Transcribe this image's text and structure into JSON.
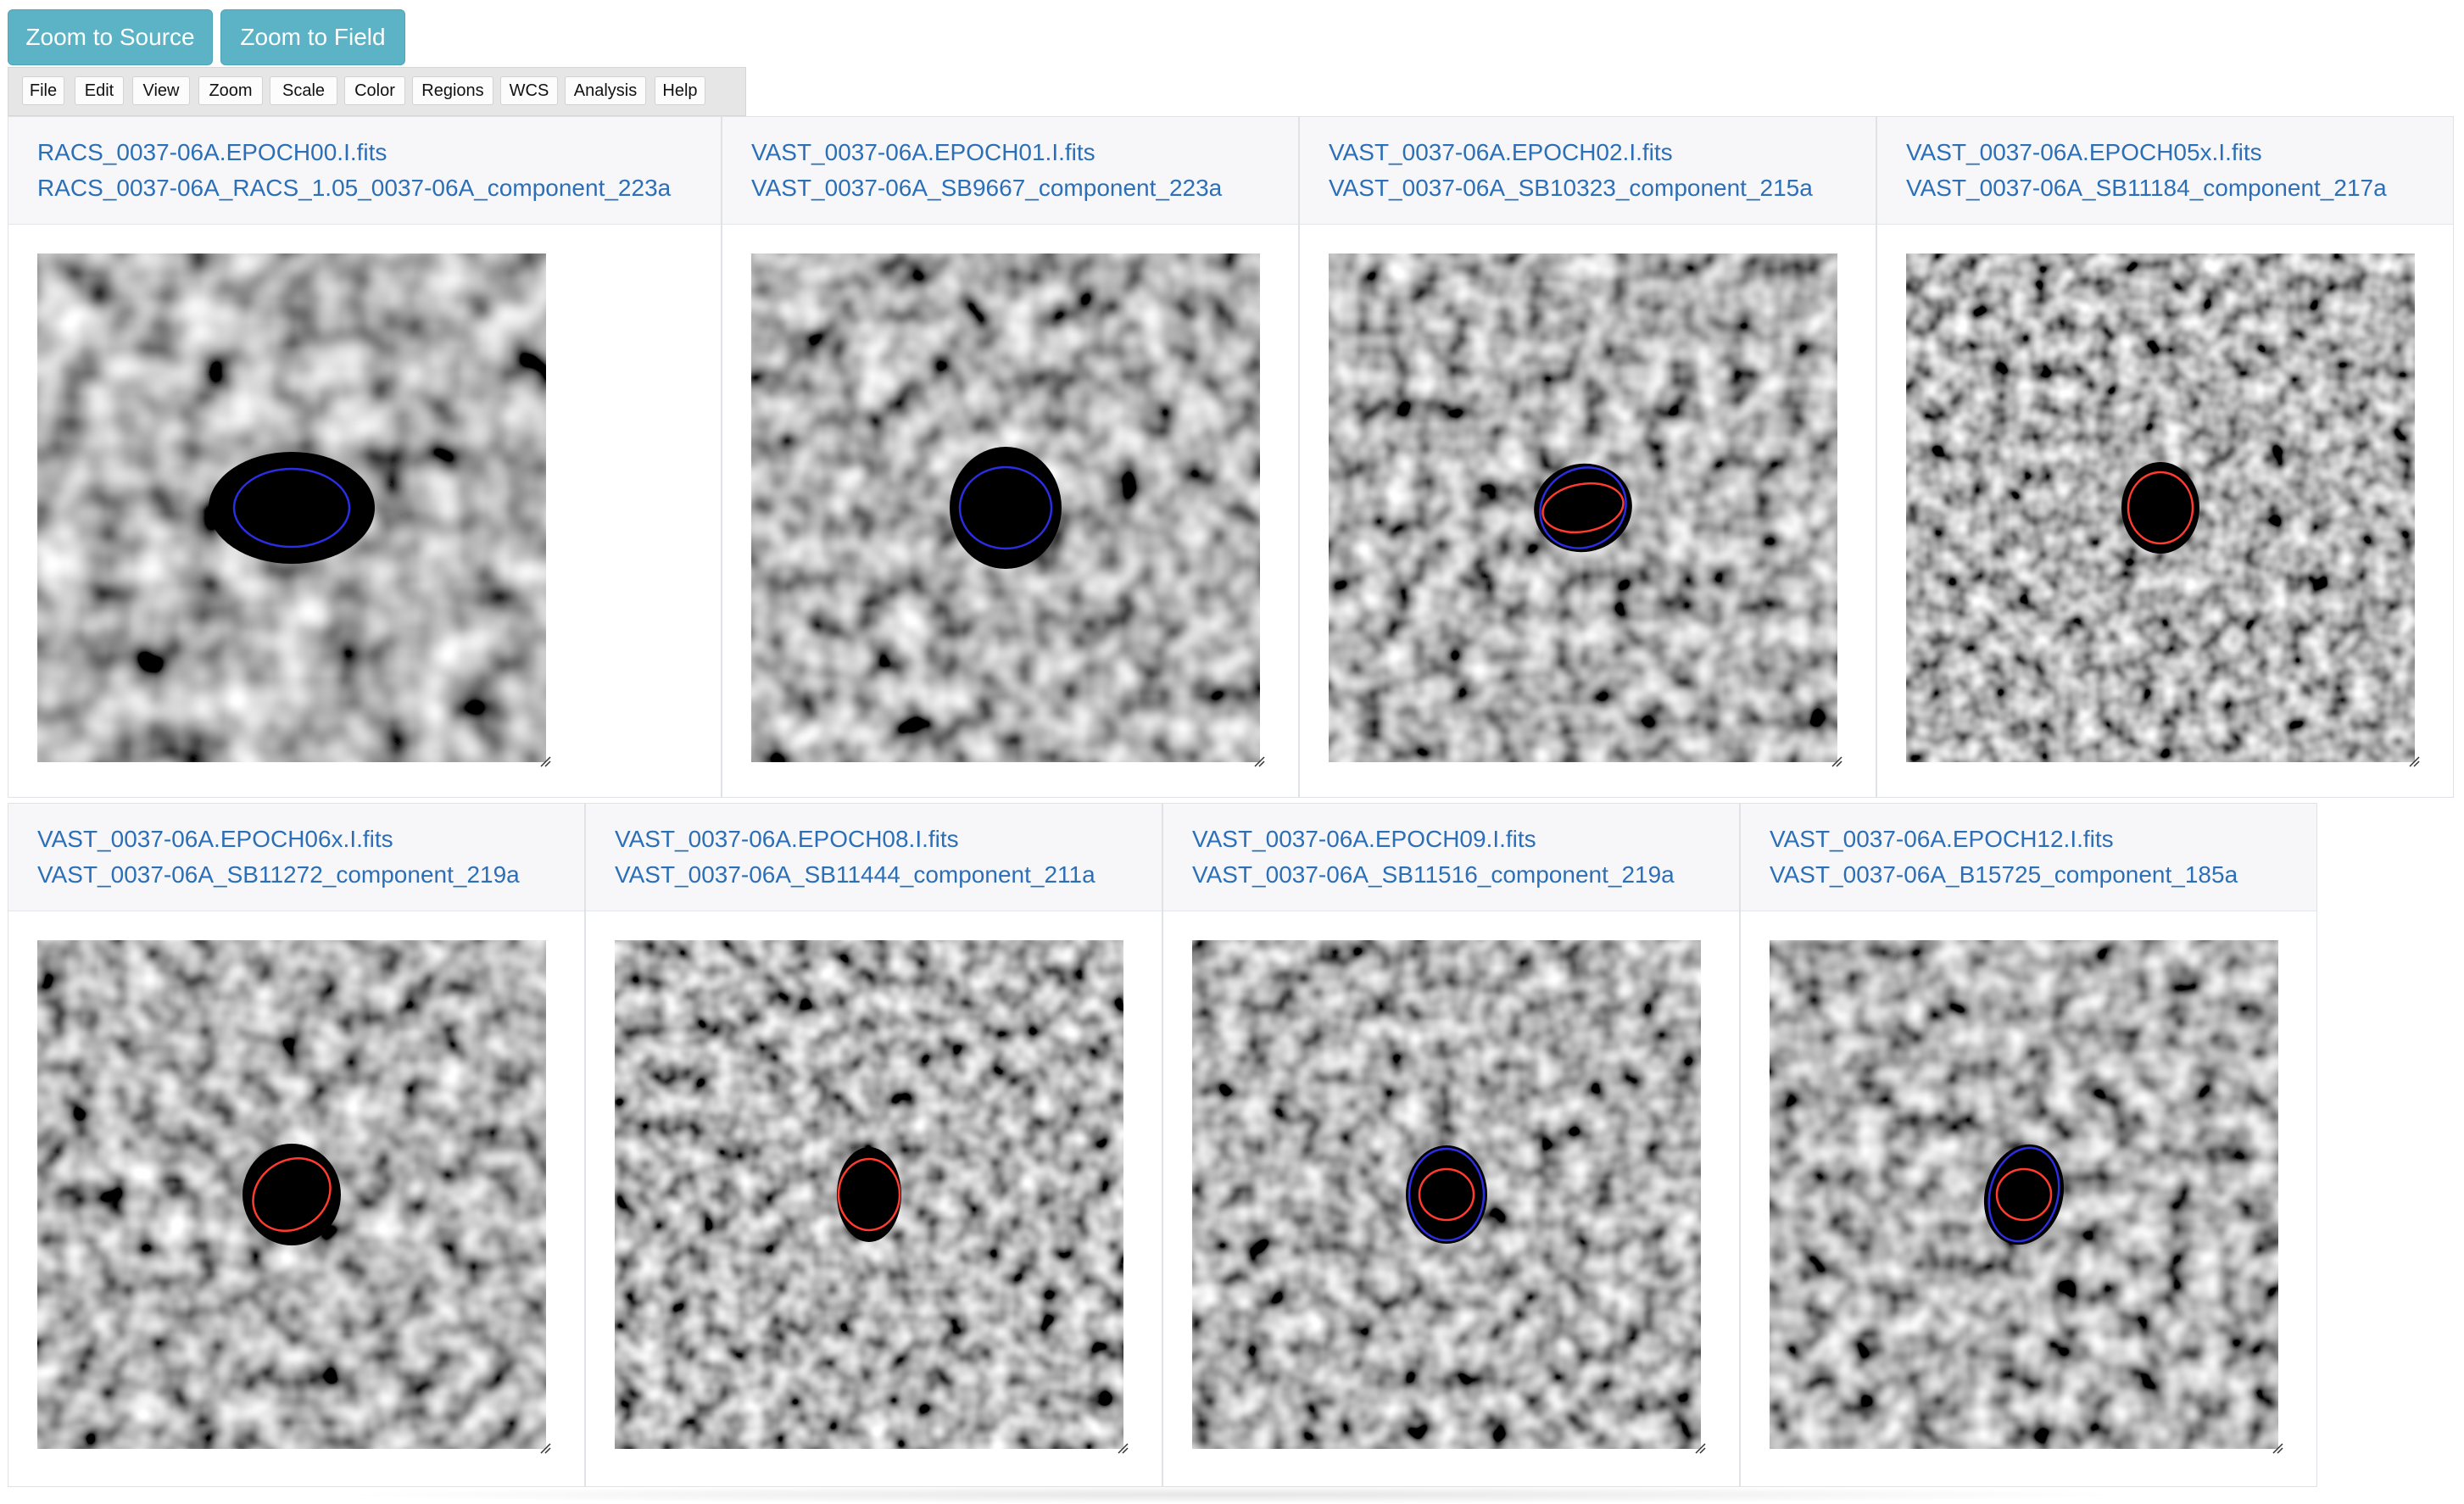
{
  "toolbar": {
    "zoom_source_label": "Zoom to Source",
    "zoom_field_label": "Zoom to Field"
  },
  "menu": [
    "File",
    "Edit",
    "View",
    "Zoom",
    "Scale",
    "Color",
    "Regions",
    "WCS",
    "Analysis",
    "Help"
  ],
  "colors": {
    "accent_button": "#5bb3c5",
    "link_text": "#2c6fb7",
    "region_blue": "#2a2ee0",
    "region_red": "#ff3b2f"
  },
  "cards": [
    {
      "file": "RACS_0037-06A.EPOCH00.I.fits",
      "component": "RACS_0037-06A_RACS_1.05_0037-06A_component_223a"
    },
    {
      "file": "VAST_0037-06A.EPOCH01.I.fits",
      "component": "VAST_0037-06A_SB9667_component_223a"
    },
    {
      "file": "VAST_0037-06A.EPOCH02.I.fits",
      "component": "VAST_0037-06A_SB10323_component_215a"
    },
    {
      "file": "VAST_0037-06A.EPOCH05x.I.fits",
      "component": "VAST_0037-06A_SB11184_component_217a"
    },
    {
      "file": "VAST_0037-06A.EPOCH06x.I.fits",
      "component": "VAST_0037-06A_SB11272_component_219a"
    },
    {
      "file": "VAST_0037-06A.EPOCH08.I.fits",
      "component": "VAST_0037-06A_SB11444_component_211a"
    },
    {
      "file": "VAST_0037-06A.EPOCH09.I.fits",
      "component": "VAST_0037-06A_SB11516_component_219a"
    },
    {
      "file": "VAST_0037-06A.EPOCH12.I.fits",
      "component": "VAST_0037-06A_B15725_component_185a"
    }
  ]
}
